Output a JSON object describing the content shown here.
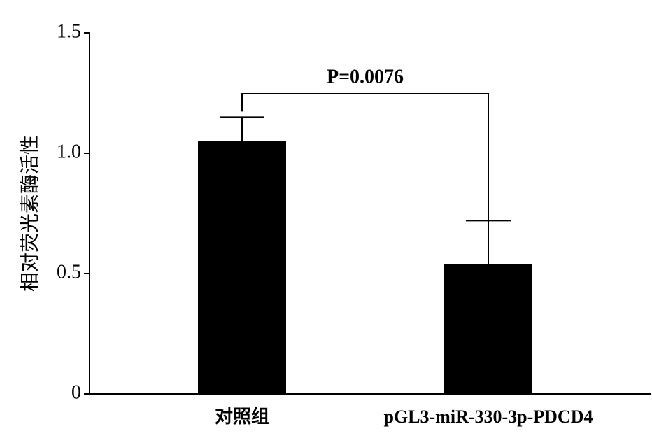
{
  "chart_data": {
    "type": "bar",
    "y_label": "相对荧光素酶活性",
    "categories": [
      "对照组",
      "pGL3-miR-330-3p-PDCD4"
    ],
    "values": [
      1.05,
      0.54
    ],
    "errors": [
      0.1,
      0.18
    ],
    "color": "#000000",
    "annotation": "P=0.0076",
    "ylim": [
      0,
      1.5
    ],
    "yticks": [
      0,
      0.5,
      {
        "value": 1,
        "label": "1.0"
      },
      1.5
    ]
  }
}
